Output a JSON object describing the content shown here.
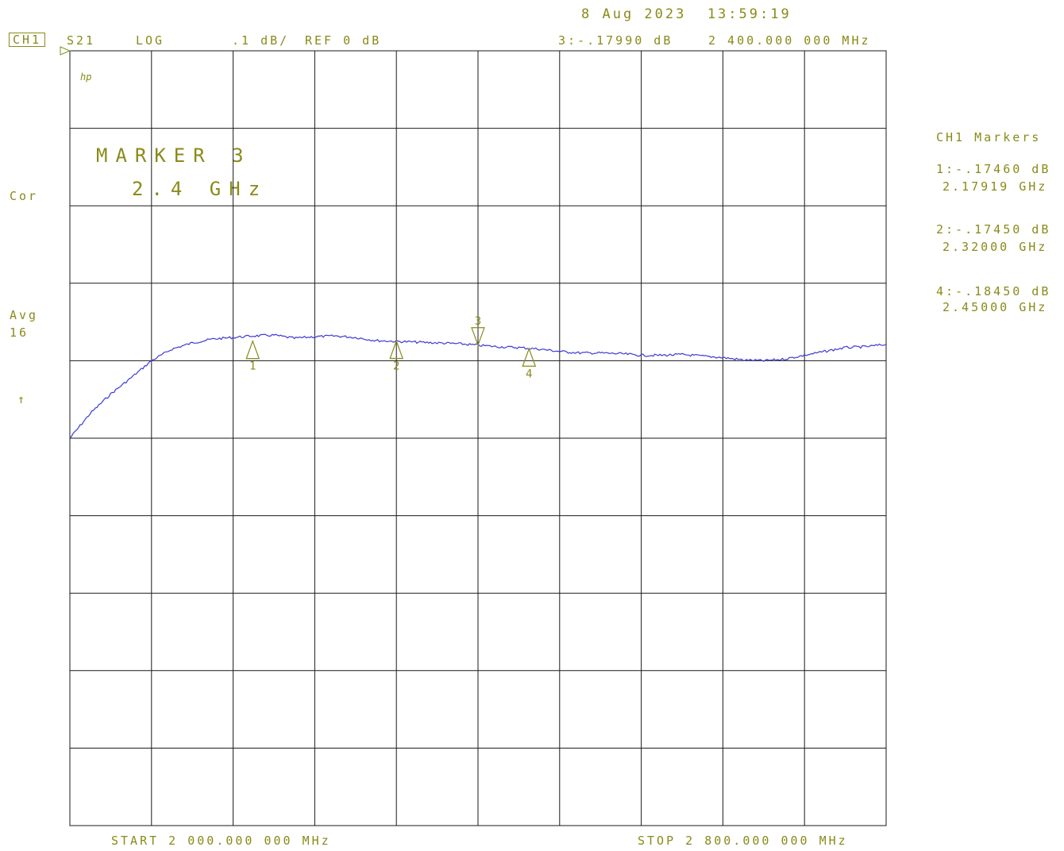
{
  "header": {
    "datetime": "8 Aug 2023  13:59:19",
    "channel": "CH1",
    "param": "S21",
    "format": "LOG",
    "scale": ".1 dB/",
    "ref": "REF 0 dB",
    "active_marker": "3:-.17990 dB",
    "active_marker_freq": "2 400.000 000 MHz"
  },
  "left": {
    "cor": "Cor",
    "avg": "Avg",
    "avg_count": "16",
    "arrow": "↑"
  },
  "annotation": {
    "line1": "MARKER 3",
    "line2": "2.4 GHz",
    "logo": "hp"
  },
  "markers_panel": {
    "title": "CH1 Markers",
    "entries": [
      {
        "value": "1:-.17460 dB",
        "freq": "2.17919 GHz"
      },
      {
        "value": "2:-.17450 dB",
        "freq": "2.32000 GHz"
      },
      {
        "value": "4:-.18450 dB",
        "freq": "2.45000 GHz"
      }
    ]
  },
  "footer": {
    "start": "START 2 000.000 000 MHz",
    "stop": "STOP 2 800.000 000 MHz"
  },
  "chart_data": {
    "type": "line",
    "xlabel": "",
    "ylabel": "",
    "xlim": [
      2000,
      2800
    ],
    "ylim": [
      -0.8,
      0.2
    ],
    "grid": true,
    "trace_color": "#3b3bd6",
    "grid_color": "#1a1a1a",
    "annotation_color": "#8a8a1a",
    "series": [
      {
        "x": [
          2000,
          2020,
          2040,
          2060,
          2080,
          2100,
          2120,
          2140,
          2160,
          2180,
          2200,
          2220,
          2240,
          2260,
          2280,
          2300,
          2320,
          2340,
          2360,
          2380,
          2400,
          2420,
          2440,
          2460,
          2480,
          2500,
          2520,
          2540,
          2560,
          2580,
          2600,
          2620,
          2640,
          2660,
          2680,
          2700,
          2720,
          2740,
          2760,
          2780,
          2800
        ],
        "values": [
          -0.3,
          -0.268,
          -0.243,
          -0.222,
          -0.2,
          -0.185,
          -0.177,
          -0.172,
          -0.17,
          -0.168,
          -0.167,
          -0.171,
          -0.169,
          -0.168,
          -0.17,
          -0.174,
          -0.175,
          -0.176,
          -0.177,
          -0.178,
          -0.18,
          -0.182,
          -0.183,
          -0.185,
          -0.188,
          -0.19,
          -0.19,
          -0.191,
          -0.193,
          -0.193,
          -0.192,
          -0.194,
          -0.196,
          -0.199,
          -0.2,
          -0.198,
          -0.193,
          -0.188,
          -0.183,
          -0.182,
          -0.179
        ]
      }
    ],
    "markers": [
      {
        "id": "1",
        "x": 2179.19,
        "y": -0.1746,
        "orientation": "up"
      },
      {
        "id": "2",
        "x": 2320.0,
        "y": -0.1745,
        "orientation": "up"
      },
      {
        "id": "3",
        "x": 2400.0,
        "y": -0.1799,
        "orientation": "down"
      },
      {
        "id": "4",
        "x": 2450.0,
        "y": -0.1845,
        "orientation": "up"
      }
    ]
  }
}
